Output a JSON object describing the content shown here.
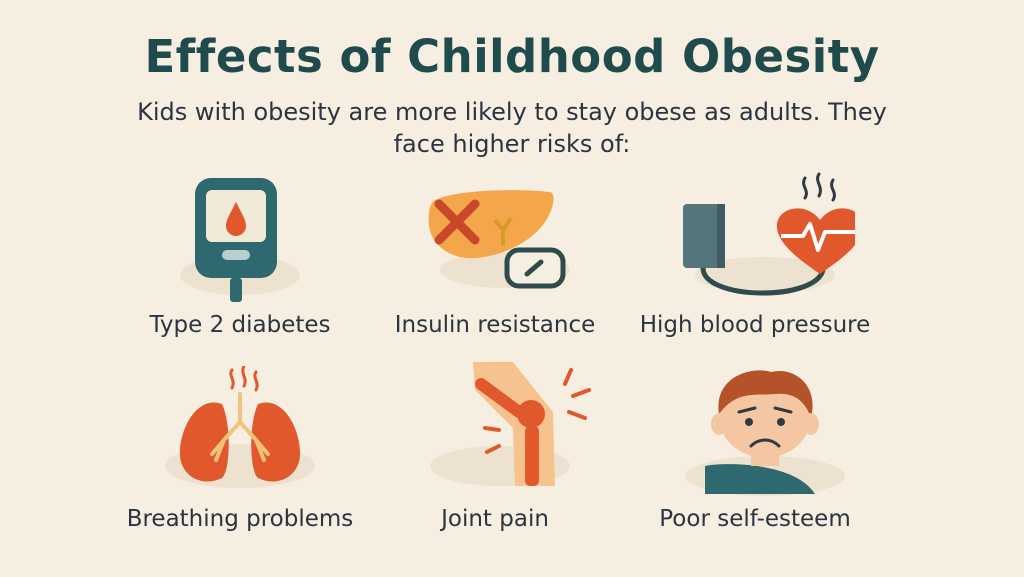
{
  "header": {
    "title": "Effects of Childhood Obesity",
    "subtitle": "Kids with obesity are more likely to stay obese as adults. They face higher risks of:"
  },
  "items": [
    {
      "label": "Type 2 diabetes",
      "icon": "glucose-meter-icon"
    },
    {
      "label": "Insulin resistance",
      "icon": "liver-icon"
    },
    {
      "label": "High blood pressure",
      "icon": "blood-pressure-heart-icon"
    },
    {
      "label": "Breathing problems",
      "icon": "lungs-icon"
    },
    {
      "label": "Joint pain",
      "icon": "knee-joint-icon"
    },
    {
      "label": "Poor self-esteem",
      "icon": "sad-child-icon"
    }
  ],
  "colors": {
    "background": "#f6efe1",
    "title": "#1f4b4d",
    "teal": "#2f6970",
    "orange": "#e0582b",
    "light_orange": "#f3a64a"
  }
}
